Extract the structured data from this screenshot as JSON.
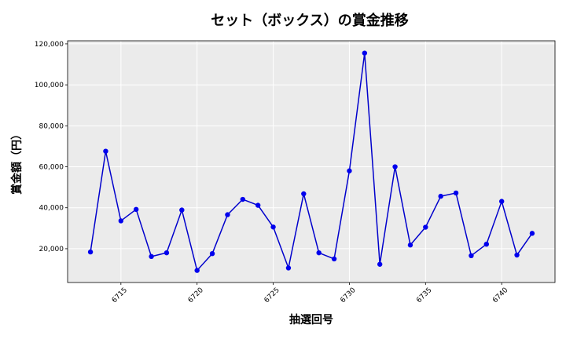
{
  "chart_data": {
    "type": "line",
    "title": "セット（ボックス）の賞金推移",
    "xlabel": "抽選回号",
    "ylabel": "賞金額（円）",
    "xlim": [
      6711.5,
      6743.5
    ],
    "ylim": [
      3500,
      121500
    ],
    "x_ticks": [
      6715,
      6720,
      6725,
      6730,
      6735,
      6740
    ],
    "y_ticks": [
      20000,
      40000,
      60000,
      80000,
      100000,
      120000
    ],
    "y_tick_labels": [
      "20,000",
      "40,000",
      "60,000",
      "80,000",
      "100,000",
      "120,000"
    ],
    "grid": true,
    "series": [
      {
        "color": "#0000cc",
        "points": [
          {
            "x": 6713,
            "y": 18400
          },
          {
            "x": 6714,
            "y": 67600
          },
          {
            "x": 6715,
            "y": 33600
          },
          {
            "x": 6716,
            "y": 39200
          },
          {
            "x": 6717,
            "y": 16200
          },
          {
            "x": 6718,
            "y": 18000
          },
          {
            "x": 6719,
            "y": 38900
          },
          {
            "x": 6720,
            "y": 9400
          },
          {
            "x": 6721,
            "y": 17600
          },
          {
            "x": 6722,
            "y": 36600
          },
          {
            "x": 6723,
            "y": 44100
          },
          {
            "x": 6724,
            "y": 41200
          },
          {
            "x": 6725,
            "y": 30600
          },
          {
            "x": 6726,
            "y": 10600
          },
          {
            "x": 6727,
            "y": 46800
          },
          {
            "x": 6728,
            "y": 18000
          },
          {
            "x": 6729,
            "y": 15000
          },
          {
            "x": 6730,
            "y": 58000
          },
          {
            "x": 6731,
            "y": 115500
          },
          {
            "x": 6732,
            "y": 12400
          },
          {
            "x": 6733,
            "y": 60000
          },
          {
            "x": 6734,
            "y": 21800
          },
          {
            "x": 6735,
            "y": 30500
          },
          {
            "x": 6736,
            "y": 45600
          },
          {
            "x": 6737,
            "y": 47200
          },
          {
            "x": 6738,
            "y": 16600
          },
          {
            "x": 6739,
            "y": 22200
          },
          {
            "x": 6740,
            "y": 43100
          },
          {
            "x": 6741,
            "y": 16900
          },
          {
            "x": 6742,
            "y": 27500
          }
        ]
      }
    ]
  },
  "colors": {
    "plot_background": "#ebebeb",
    "grid": "#ffffff",
    "line": "#0000cc",
    "marker": "#0000ee"
  }
}
